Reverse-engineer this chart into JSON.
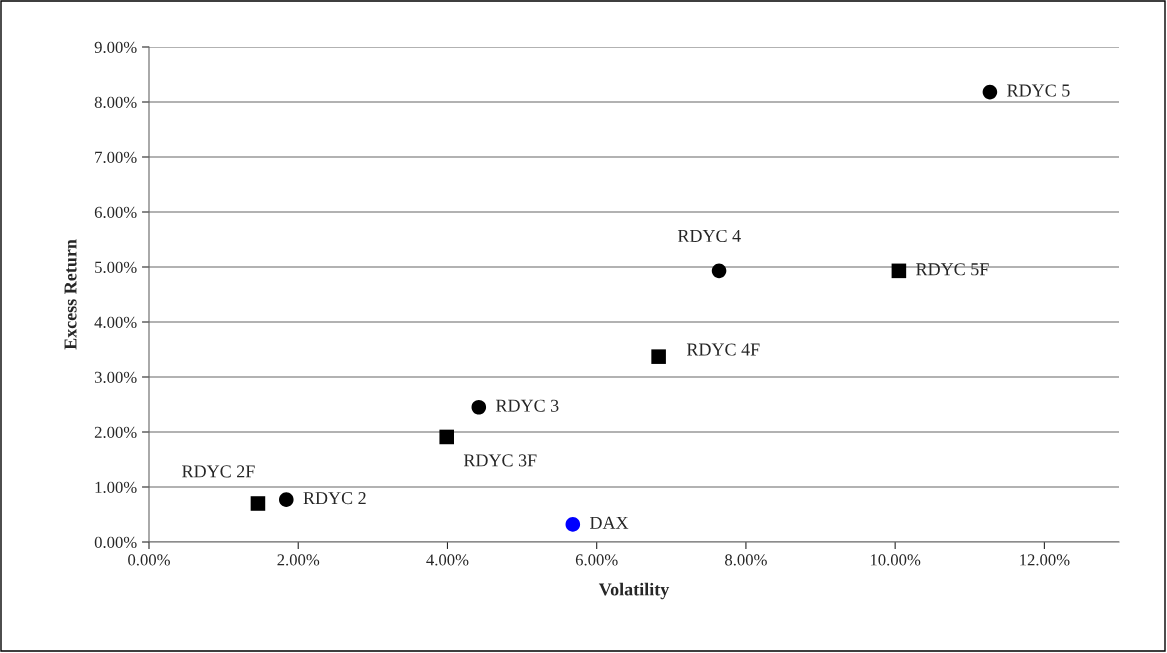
{
  "chart_data": {
    "type": "scatter",
    "xlabel": "Volatility",
    "ylabel": "Excess Return",
    "series": [
      {
        "name": "RDYC 2F",
        "color": "#000000",
        "marker": "square",
        "x": [
          1.46
        ],
        "values": [
          0.7
        ]
      },
      {
        "name": "RDYC 2",
        "color": "#000000",
        "marker": "circle",
        "x": [
          1.84
        ],
        "values": [
          0.77
        ]
      },
      {
        "name": "RDYC 3F",
        "color": "#000000",
        "marker": "square",
        "x": [
          3.99
        ],
        "values": [
          1.91
        ]
      },
      {
        "name": "RDYC 3",
        "color": "#000000",
        "marker": "circle",
        "x": [
          4.42
        ],
        "values": [
          2.45
        ]
      },
      {
        "name": "DAX",
        "color": "#0000ff",
        "marker": "circle",
        "x": [
          5.68
        ],
        "values": [
          0.32
        ]
      },
      {
        "name": "RDYC 4F",
        "color": "#000000",
        "marker": "square",
        "x": [
          6.83
        ],
        "values": [
          3.37
        ]
      },
      {
        "name": "RDYC 4",
        "color": "#000000",
        "marker": "circle",
        "x": [
          7.64
        ],
        "values": [
          4.93
        ]
      },
      {
        "name": "RDYC 5F",
        "color": "#000000",
        "marker": "square",
        "x": [
          10.05
        ],
        "values": [
          4.93
        ]
      },
      {
        "name": "RDYC 5",
        "color": "#000000",
        "marker": "circle",
        "x": [
          11.27
        ],
        "values": [
          8.18
        ]
      }
    ],
    "xlim": [
      0,
      13
    ],
    "xticks": [
      {
        "value": 0,
        "label": "0.00%"
      },
      {
        "value": 2,
        "label": "2.00%"
      },
      {
        "value": 4,
        "label": "4.00%"
      },
      {
        "value": 6,
        "label": "6.00%"
      },
      {
        "value": 8,
        "label": "8.00%"
      },
      {
        "value": 10,
        "label": "10.00%"
      },
      {
        "value": 12,
        "label": "12.00%"
      }
    ],
    "ylim": [
      0,
      9
    ],
    "yticks": [
      {
        "value": 0,
        "label": "0.00%"
      },
      {
        "value": 1,
        "label": "1.00%"
      },
      {
        "value": 2,
        "label": "2.00%"
      },
      {
        "value": 3,
        "label": "3.00%"
      },
      {
        "value": 4,
        "label": "4.00%"
      },
      {
        "value": 5,
        "label": "5.00%"
      },
      {
        "value": 6,
        "label": "6.00%"
      },
      {
        "value": 7,
        "label": "7.00%"
      },
      {
        "value": 8,
        "label": "8.00%"
      },
      {
        "value": 9,
        "label": "9.00%"
      }
    ],
    "grid": "y",
    "legend": false
  }
}
